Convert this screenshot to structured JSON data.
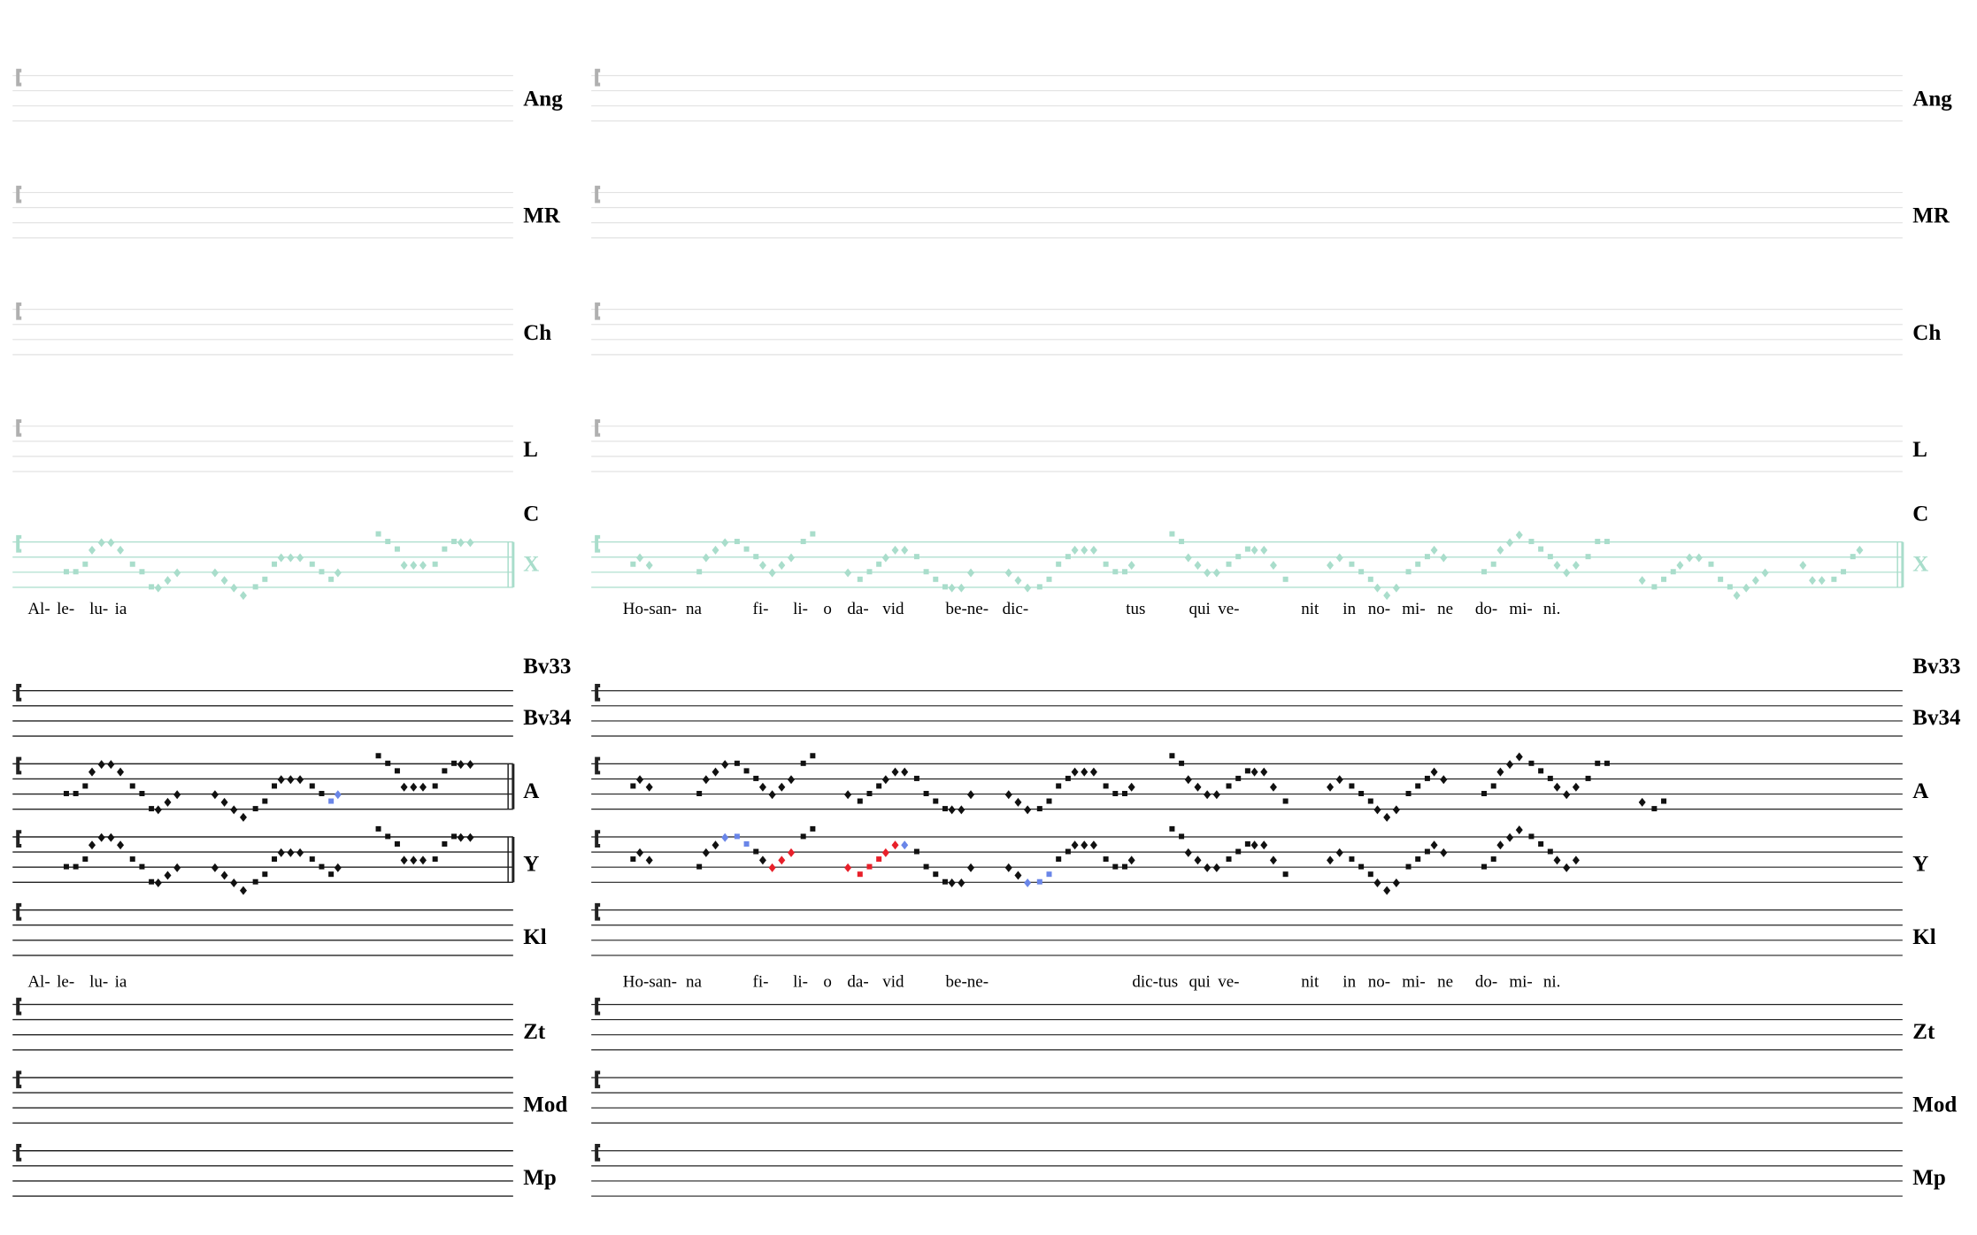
{
  "top_staves": [
    "Ang",
    "MR",
    "Ch",
    "L"
  ],
  "x_staff": {
    "upper_label": "C",
    "label": "X"
  },
  "bottom_upper_labels": [
    "Bv33",
    "Bv34"
  ],
  "note_staves": [
    "A",
    "Y",
    "Kl"
  ],
  "lower_staves": [
    "Zt",
    "Mod",
    "Mp"
  ],
  "lyrics_left": [
    "Al-",
    "le-",
    "lu-",
    "ia"
  ],
  "lyrics_right_top": [
    "Ho-san-",
    "na",
    "fi-",
    "li-",
    "o",
    "da-",
    "vid",
    "be-ne-",
    "dic-",
    "tus",
    "qui",
    "ve-",
    "nit",
    "in",
    "no-",
    "mi-",
    "ne",
    "do-",
    "mi-",
    "ni."
  ],
  "lyrics_right_bottom": [
    "Ho-san-",
    "na",
    "fi-",
    "li-",
    "o",
    "da-",
    "vid",
    "be-ne-",
    "dic-tus",
    "qui",
    "ve-",
    "nit",
    "in",
    "no-",
    "mi-",
    "ne",
    "do-",
    "mi-",
    "ni."
  ]
}
